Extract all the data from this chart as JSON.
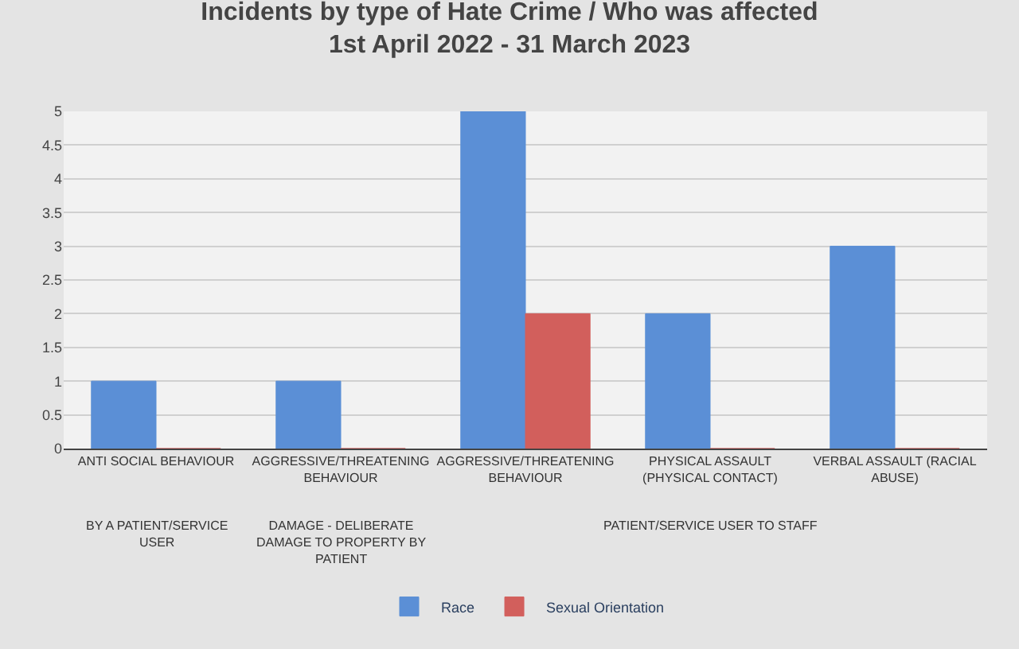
{
  "chart_data": {
    "type": "bar",
    "title": "Incidents by type of Hate Crime / Who was affected",
    "subtitle": "1st April 2022 - 31 March 2023",
    "categories": [
      "ANTI SOCIAL BEHAVIOUR",
      "AGGRESSIVE/THREATENING BEHAVIOUR",
      "AGGRESSIVE/THREATENING BEHAVIOUR",
      "PHYSICAL ASSAULT (PHYSICAL CONTACT)",
      "VERBAL ASSAULT (RACIAL ABUSE)"
    ],
    "series": [
      {
        "name": "Race",
        "color": "#5b8fd6",
        "values": [
          1,
          1,
          5,
          2,
          3
        ]
      },
      {
        "name": "Sexual Orientation",
        "color": "#d25f5c",
        "values": [
          0,
          0,
          2,
          0,
          0
        ]
      }
    ],
    "annotations": [
      "BY A PATIENT/SERVICE USER",
      "DAMAGE - DELIBERATE DAMAGE TO PROPERTY BY PATIENT",
      "PATIENT/SERVICE USER TO STAFF"
    ],
    "ylim": [
      0,
      5
    ],
    "yticks": [
      0,
      0.5,
      1,
      1.5,
      2,
      2.5,
      3,
      3.5,
      4,
      4.5,
      5
    ],
    "grid": "y",
    "legend": "bottom"
  }
}
